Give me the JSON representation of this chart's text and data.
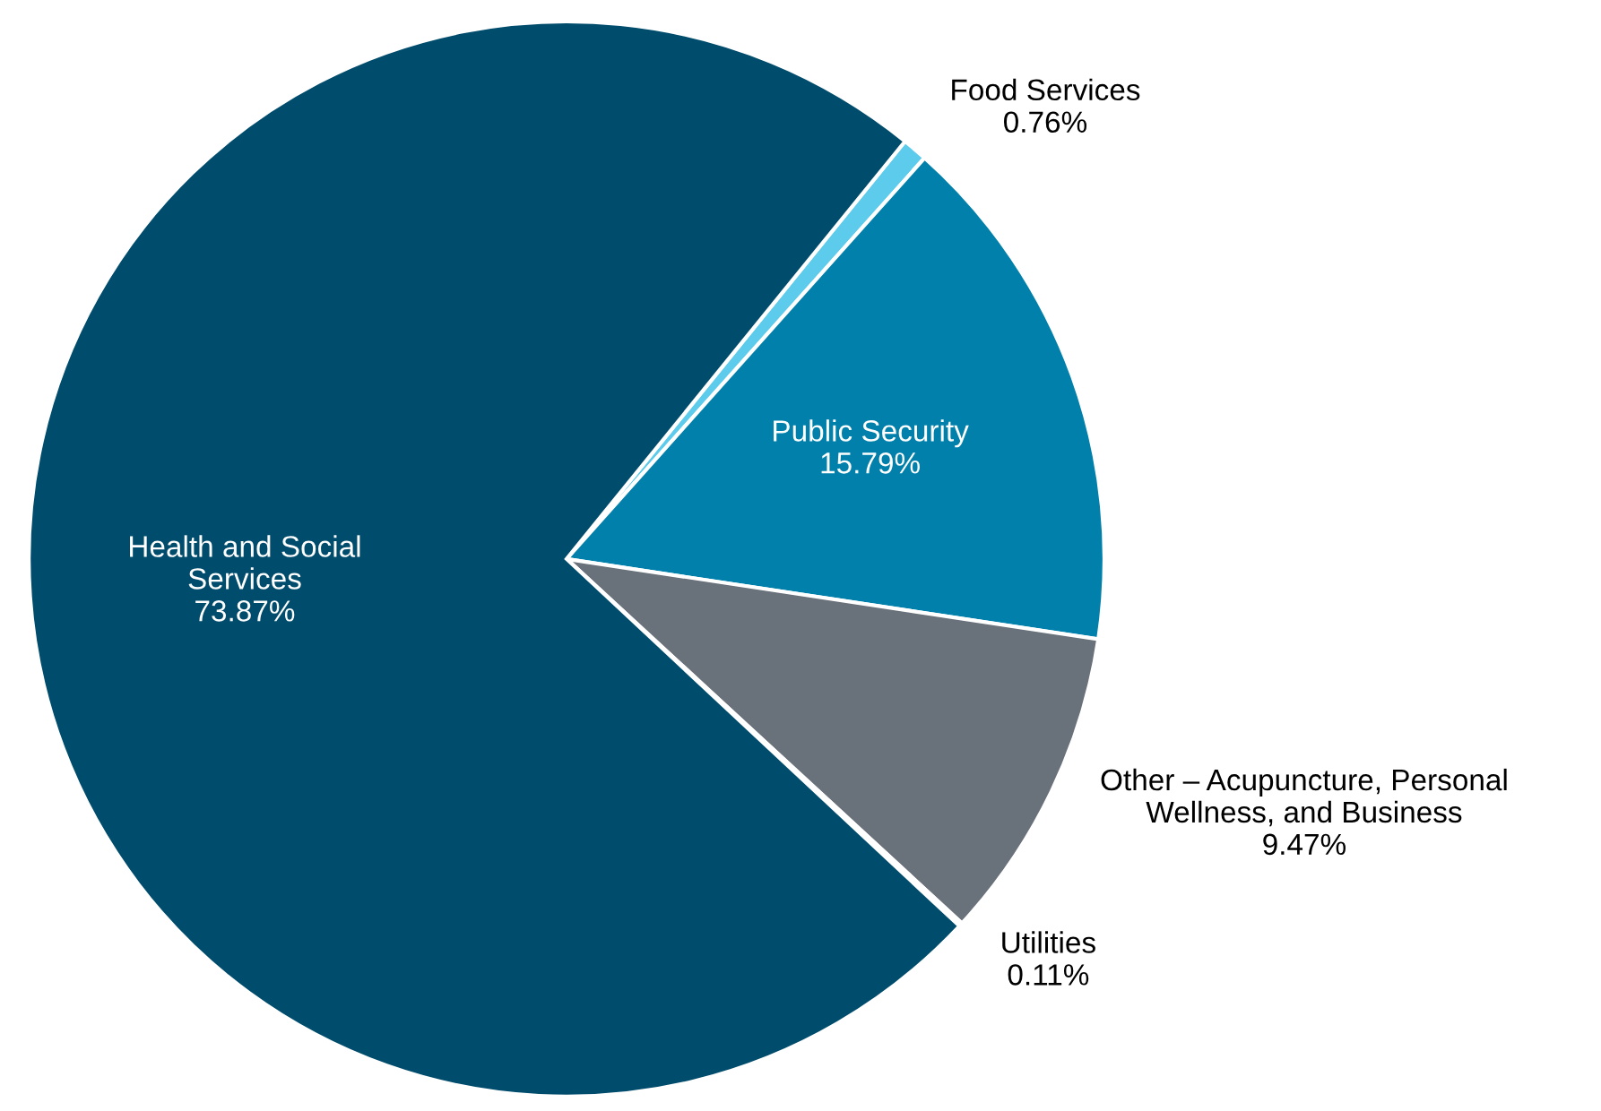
{
  "chart_data": {
    "type": "pie",
    "categories": [
      "Food Services",
      "Public Security",
      "Other – Acupuncture, Personal\nWellness, and Business",
      "Utilities",
      "Health and Social\nServices"
    ],
    "values": [
      0.76,
      15.79,
      9.47,
      0.11,
      73.87
    ],
    "value_labels": [
      "0.76%",
      "15.79%",
      "9.47%",
      "0.11%",
      "73.87%"
    ],
    "colors": [
      "#5ccbec",
      "#0080ab",
      "#69717b",
      "#69717b",
      "#004c6c"
    ],
    "legend": false
  }
}
